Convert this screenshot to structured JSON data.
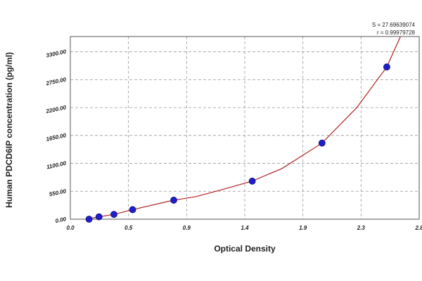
{
  "chart_data": {
    "type": "scatter",
    "annotations": [
      "S = 27.69639074",
      "r = 0.99979728"
    ],
    "xlabel": "Optical Density",
    "ylabel": "Human PDCD6IP concentration (pg/ml)",
    "x": [
      0.15,
      0.23,
      0.35,
      0.5,
      0.83,
      1.46,
      2.02,
      2.54
    ],
    "series": [
      {
        "color": "#1f1fc8",
        "values": [
          0,
          47,
          94,
          188,
          375,
          750,
          1500,
          3000
        ]
      }
    ],
    "curve": {
      "color": "#b22222",
      "x": [
        0.13,
        0.23,
        0.35,
        0.5,
        0.83,
        1.0,
        1.2,
        1.46,
        1.7,
        2.02,
        2.3,
        2.54,
        2.65
      ],
      "values": [
        0,
        47,
        94,
        188,
        375,
        440,
        570,
        750,
        1000,
        1500,
        2200,
        3000,
        3600
      ]
    },
    "xlim": [
      0,
      2.8
    ],
    "xticks": [
      {
        "value": 0,
        "label": "0.0"
      },
      {
        "value": 0.4667,
        "label": "0.5"
      },
      {
        "value": 0.9333,
        "label": "0.9"
      },
      {
        "value": 1.4,
        "label": "1.4"
      },
      {
        "value": 1.8667,
        "label": "1.9"
      },
      {
        "value": 2.3333,
        "label": "2.3"
      },
      {
        "value": 2.8,
        "label": "2.8"
      }
    ],
    "ylim": [
      0,
      3600
    ],
    "yticks": [
      {
        "value": 0,
        "label": "0.00"
      },
      {
        "value": 550,
        "label": "550.00"
      },
      {
        "value": 1100,
        "label": "1100.00"
      },
      {
        "value": 1650,
        "label": "1650.00"
      },
      {
        "value": 2200,
        "label": "2200.00"
      },
      {
        "value": 2750,
        "label": "2750.00"
      },
      {
        "value": 3300,
        "label": "3300.00"
      }
    ],
    "grid": true
  }
}
